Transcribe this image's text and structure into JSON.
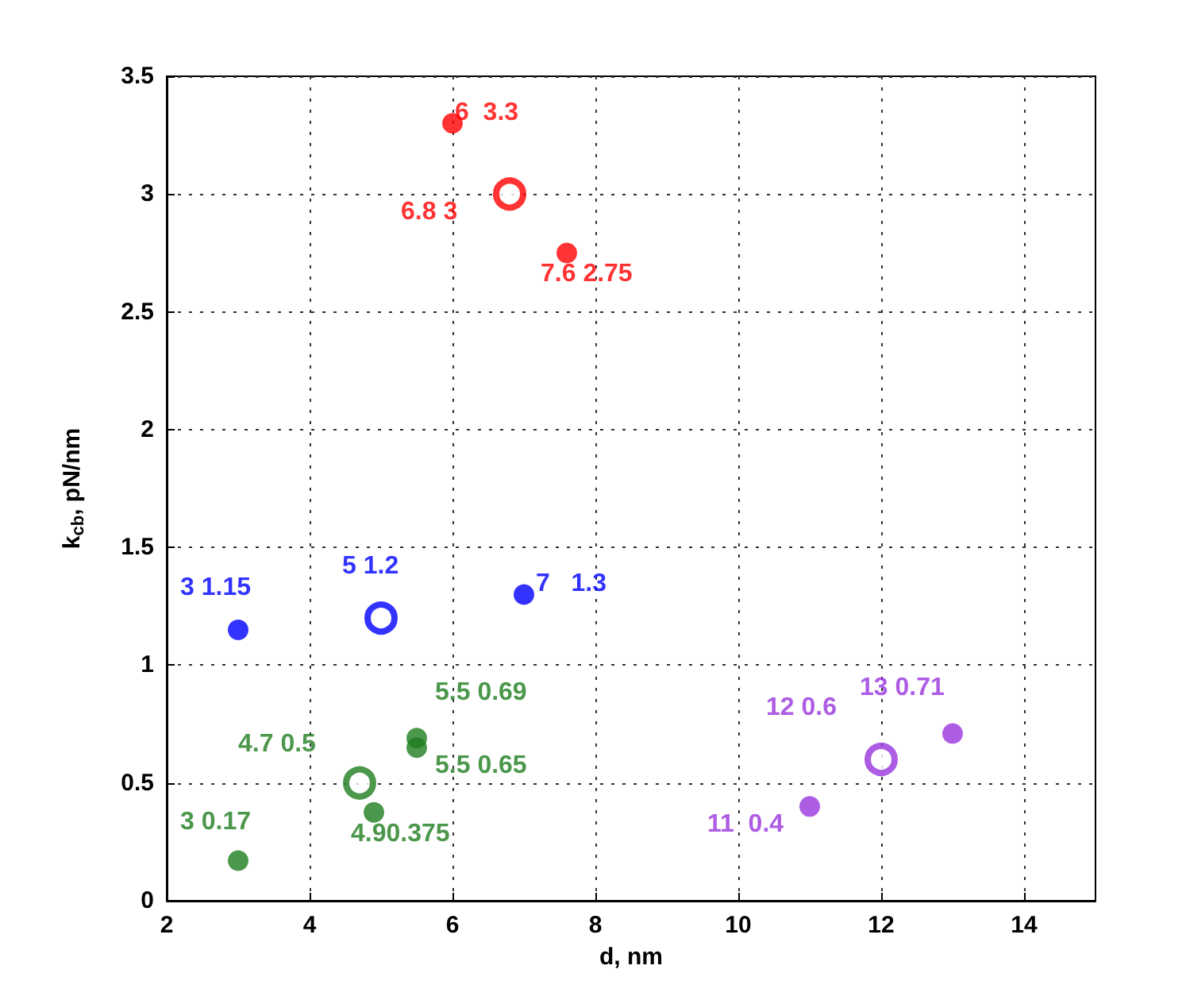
{
  "chart_data": {
    "type": "scatter",
    "xlabel": "d, nm",
    "ylabel": "k$_{cb}$, pN/nm",
    "xlim": [
      2,
      15
    ],
    "xticks": [
      2,
      4,
      6,
      8,
      10,
      12,
      14
    ],
    "ylim": [
      0,
      3.5
    ],
    "yticks": [
      0,
      0.5,
      1,
      1.5,
      2,
      2.5,
      3,
      3.5
    ],
    "grid": true,
    "marker": "circle",
    "series": [
      {
        "color": "#ff0000",
        "x": [
          6,
          7.6
        ],
        "values": [
          3.3,
          2.75
        ],
        "value_labels": [
          "6  3.3",
          "7.6 2.75"
        ]
      },
      {
        "color": "#ff0000",
        "x": [
          6.8
        ],
        "values": [
          3
        ],
        "value_labels": [
          "6.8 3"
        ]
      },
      {
        "color": "#0000ff",
        "x": [
          3,
          7
        ],
        "values": [
          1.15,
          1.3
        ],
        "value_labels": [
          "3 1.15",
          "7   1.3"
        ]
      },
      {
        "color": "#0000ff",
        "x": [
          5
        ],
        "values": [
          1.2
        ],
        "value_labels": [
          "5 1.2"
        ]
      },
      {
        "color": "#1e7d1e",
        "x": [
          5.5,
          5.5,
          4.9,
          3
        ],
        "values": [
          0.69,
          0.65,
          0.375,
          0.17
        ],
        "value_labels": [
          "5.5 0.69",
          "5.5 0.65",
          "4.90.375",
          "3 0.17"
        ]
      },
      {
        "color": "#1e7d1e",
        "x": [
          4.7
        ],
        "values": [
          0.5
        ],
        "value_labels": [
          "4.7 0.5"
        ]
      },
      {
        "color": "#9933dd",
        "x": [
          13,
          11
        ],
        "values": [
          0.71,
          0.4
        ],
        "value_labels": [
          "13 0.71",
          "11  0.4"
        ]
      },
      {
        "color": "#9933dd",
        "x": [
          12
        ],
        "values": [
          0.6
        ],
        "value_labels": [
          "12 0.6"
        ]
      }
    ]
  }
}
